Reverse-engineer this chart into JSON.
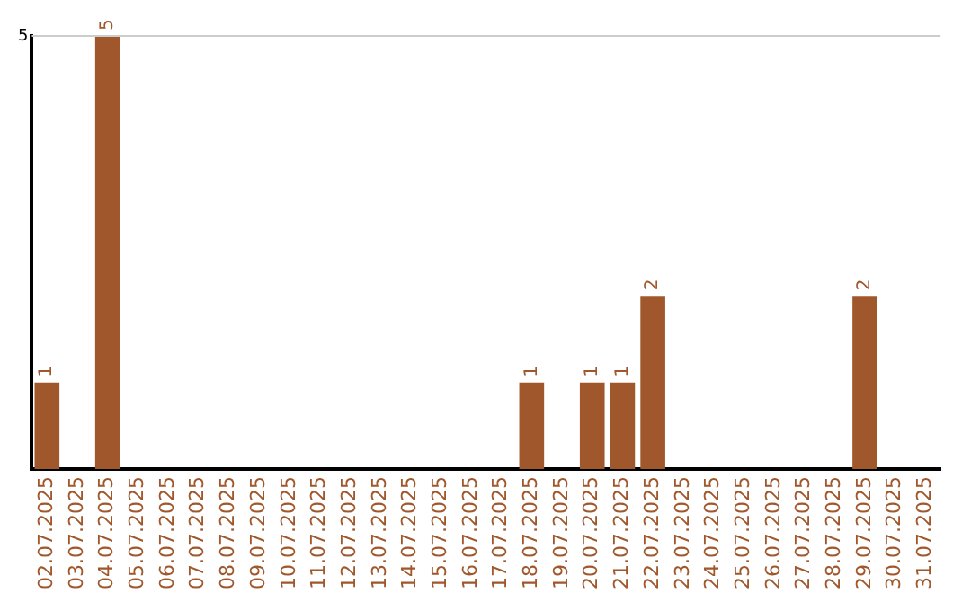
{
  "chart_data": {
    "type": "bar",
    "categories": [
      "02.07.2025",
      "03.07.2025",
      "04.07.2025",
      "05.07.2025",
      "06.07.2025",
      "07.07.2025",
      "08.07.2025",
      "09.07.2025",
      "10.07.2025",
      "11.07.2025",
      "12.07.2025",
      "13.07.2025",
      "14.07.2025",
      "15.07.2025",
      "16.07.2025",
      "17.07.2025",
      "18.07.2025",
      "19.07.2025",
      "20.07.2025",
      "21.07.2025",
      "22.07.2025",
      "23.07.2025",
      "24.07.2025",
      "25.07.2025",
      "26.07.2025",
      "27.07.2025",
      "28.07.2025",
      "29.07.2025",
      "30.07.2025",
      "31.07.2025"
    ],
    "values": [
      1,
      0,
      5,
      0,
      0,
      0,
      0,
      0,
      0,
      0,
      0,
      0,
      0,
      0,
      0,
      0,
      1,
      0,
      1,
      1,
      2,
      0,
      0,
      0,
      0,
      0,
      0,
      2,
      0,
      0
    ],
    "value_labels": [
      "1",
      null,
      "5",
      null,
      null,
      null,
      null,
      null,
      null,
      null,
      null,
      null,
      null,
      null,
      null,
      null,
      "1",
      null,
      "1",
      "1",
      "2",
      null,
      null,
      null,
      null,
      null,
      null,
      "2",
      null,
      null
    ],
    "color": "#a0572b",
    "ylim": [
      0,
      5
    ],
    "yticks": [
      5
    ],
    "legend": false,
    "ref_lines": [
      {
        "axis": "y",
        "value": 5,
        "color": "#cccccc"
      }
    ]
  }
}
